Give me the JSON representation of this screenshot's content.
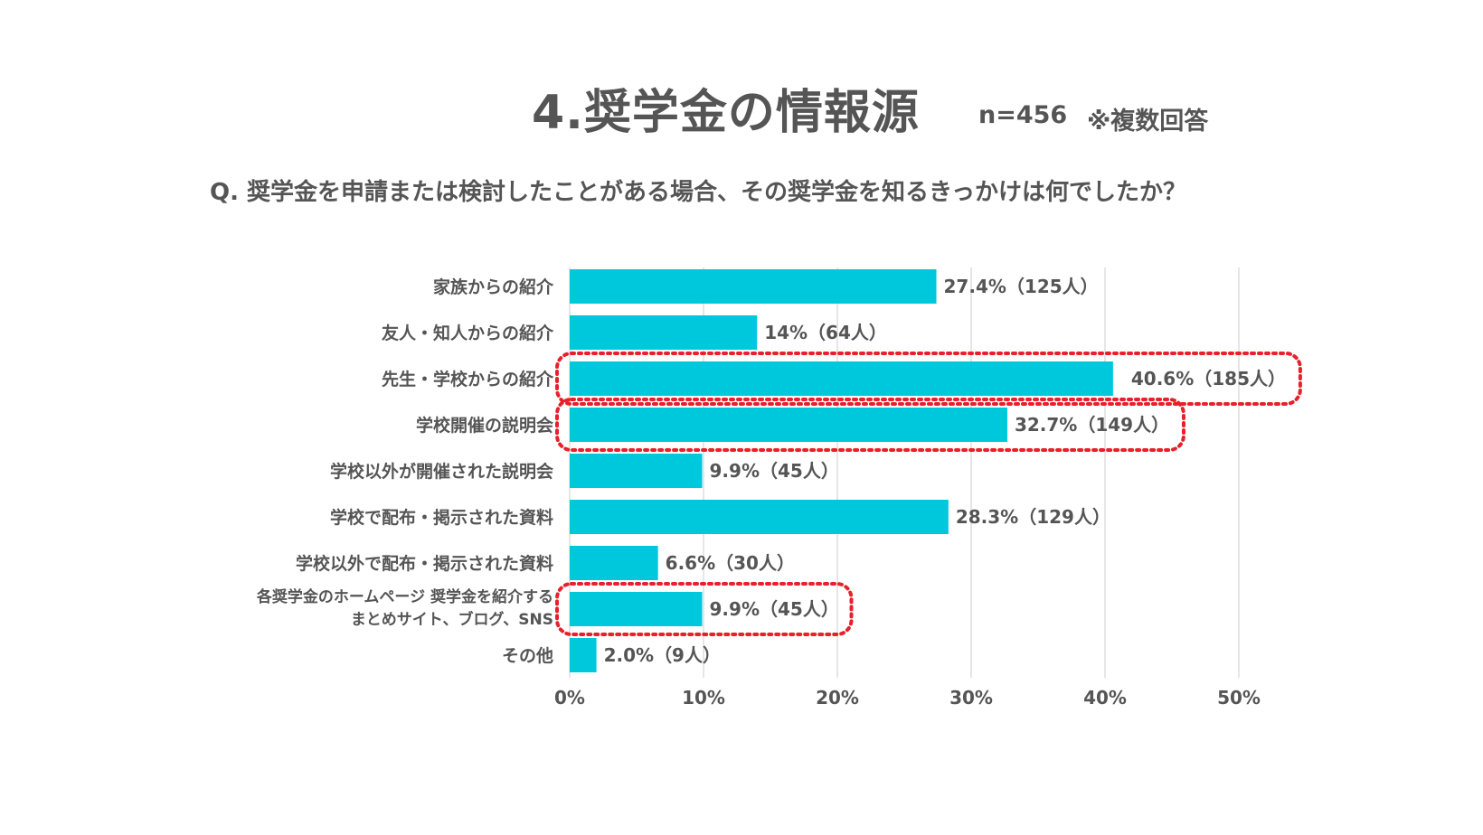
{
  "title": "4.奨学金の情報源",
  "sample_size": "n=456",
  "note": "※複数回答",
  "question": "Q. 奨学金を申請または検討したことがある場合、その奨学金を知るきっかけは何でしたか？",
  "colors": {
    "bar": "#00c8dc",
    "highlight": "#e8202a",
    "grid": "#dddddd",
    "text": "#555555"
  },
  "chart_data": {
    "type": "bar",
    "orientation": "horizontal",
    "xlim": [
      0,
      50
    ],
    "x_ticks": [
      "0%",
      "10%",
      "20%",
      "30%",
      "40%",
      "50%"
    ],
    "grid": true,
    "categories": [
      [
        "家族からの紹介"
      ],
      [
        "友人・知人からの紹介"
      ],
      [
        "先生・学校からの紹介"
      ],
      [
        "学校開催の説明会"
      ],
      [
        "学校以外が開催された説明会"
      ],
      [
        "学校で配布・掲示された資料"
      ],
      [
        "学校以外で配布・掲示された資料"
      ],
      [
        "各奨学金のホームページ 奨学金を紹介する",
        "まとめサイト、ブログ、SNS"
      ],
      [
        "その他"
      ]
    ],
    "values": [
      27.4,
      14,
      40.6,
      32.7,
      9.9,
      28.3,
      6.6,
      9.9,
      2.0
    ],
    "data_labels": [
      "27.4%（125人）",
      "14%（64人）",
      "40.6%（185人）",
      "32.7%（149人）",
      "9.9%（45人）",
      "28.3%（129人）",
      "6.6%（30人）",
      "9.9%（45人）",
      "2.0%（9人）"
    ],
    "highlighted": [
      2,
      3,
      7
    ]
  }
}
